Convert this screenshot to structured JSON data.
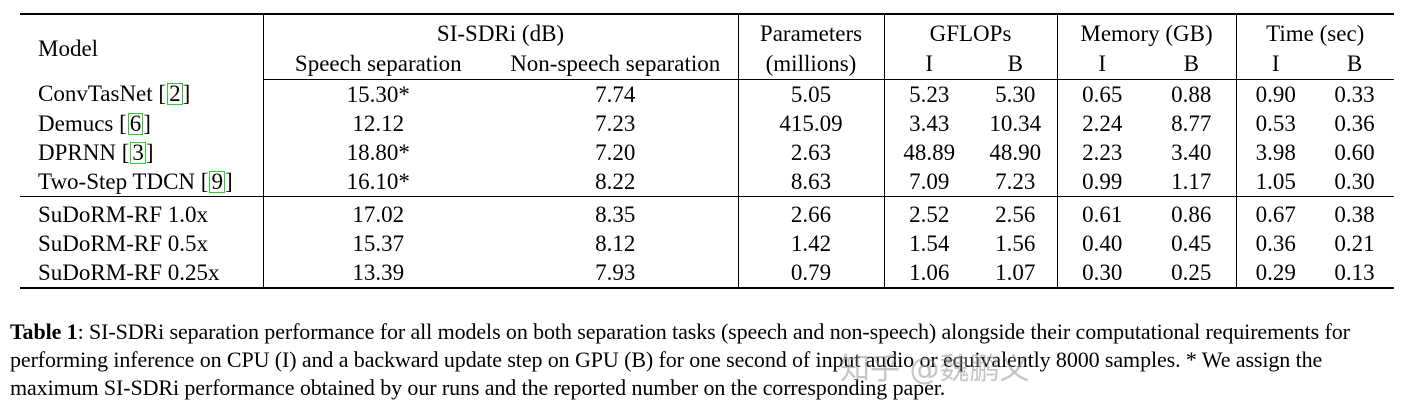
{
  "table": {
    "header": {
      "model": "Model",
      "sisdr_group": "SI-SDRi (dB)",
      "speech_sep": "Speech separation",
      "nonspeech_sep": "Non-speech separation",
      "params": "Parameters",
      "params_unit": "(millions)",
      "gflops": "GFLOPs",
      "memory": "Memory (GB)",
      "time": "Time (sec)",
      "i": "I",
      "b": "B"
    },
    "group1": [
      {
        "model": "ConvTasNet",
        "cite": "2",
        "speech": "15.30*",
        "nonspeech": "7.74",
        "params": "5.05",
        "gflops_i": "5.23",
        "gflops_b": "5.30",
        "mem_i": "0.65",
        "mem_b": "0.88",
        "time_i": "0.90",
        "time_b": "0.33"
      },
      {
        "model": "Demucs",
        "cite": "6",
        "speech": "12.12",
        "nonspeech": "7.23",
        "params": "415.09",
        "gflops_i": "3.43",
        "gflops_b": "10.34",
        "mem_i": "2.24",
        "mem_b": "8.77",
        "time_i": "0.53",
        "time_b": "0.36"
      },
      {
        "model": "DPRNN",
        "cite": "3",
        "speech": "18.80*",
        "nonspeech": "7.20",
        "params": "2.63",
        "gflops_i": "48.89",
        "gflops_b": "48.90",
        "mem_i": "2.23",
        "mem_b": "3.40",
        "time_i": "3.98",
        "time_b": "0.60"
      },
      {
        "model": "Two-Step TDCN",
        "cite": "9",
        "speech": "16.10*",
        "nonspeech": "8.22",
        "params": "8.63",
        "gflops_i": "7.09",
        "gflops_b": "7.23",
        "mem_i": "0.99",
        "mem_b": "1.17",
        "time_i": "1.05",
        "time_b": "0.30"
      }
    ],
    "group2": [
      {
        "model": "SuDoRM-RF 1.0x",
        "speech": "17.02",
        "nonspeech": "8.35",
        "params": "2.66",
        "gflops_i": "2.52",
        "gflops_b": "2.56",
        "mem_i": "0.61",
        "mem_b": "0.86",
        "time_i": "0.67",
        "time_b": "0.38"
      },
      {
        "model": "SuDoRM-RF 0.5x",
        "speech": "15.37",
        "nonspeech": "8.12",
        "params": "1.42",
        "gflops_i": "1.54",
        "gflops_b": "1.56",
        "mem_i": "0.40",
        "mem_b": "0.45",
        "time_i": "0.36",
        "time_b": "0.21"
      },
      {
        "model": "SuDoRM-RF 0.25x",
        "speech": "13.39",
        "nonspeech": "7.93",
        "params": "0.79",
        "gflops_i": "1.06",
        "gflops_b": "1.07",
        "mem_i": "0.30",
        "mem_b": "0.25",
        "time_i": "0.29",
        "time_b": "0.13"
      }
    ]
  },
  "caption": {
    "label": "Table 1",
    "text": ": SI-SDRi separation performance for all models on both separation tasks (speech and non-speech) alongside their computational requirements for performing inference on CPU (I) and a backward update step on GPU (B) for one second of input audio or equivalently 8000 samples. * We assign the maximum SI-SDRi performance obtained by our runs and the reported number on the corresponding paper."
  },
  "watermark": "知乎 @魏鹏义",
  "colors": {
    "citation_box": "#2ecc2e",
    "text": "#000000"
  }
}
